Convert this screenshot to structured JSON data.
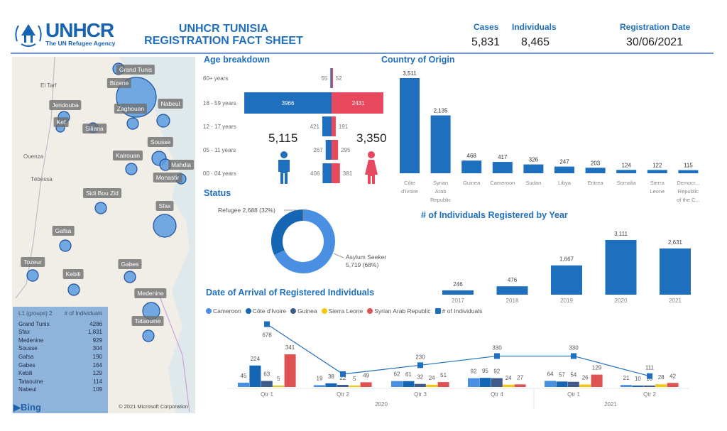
{
  "header": {
    "logo_text": "UNHCR",
    "logo_sub": "The UN Refugee Agency",
    "title_line1": "UNHCR TUNISIA",
    "title_line2": "REGISTRATION FACT SHEET",
    "cases_label": "Cases",
    "cases_value": "5,831",
    "individuals_label": "Individuals",
    "individuals_value": "8,465",
    "date_label": "Registration Date",
    "date_value": "30/06/2021"
  },
  "map": {
    "places": [
      "Grand Tunis",
      "Bizerte",
      "Jendouba",
      "Zaghouan",
      "Nabeul",
      "Kef",
      "Siliana",
      "Sousse",
      "Kairouan",
      "Mahdia",
      "Monastir",
      "Sidi Bou Zid",
      "Sfax",
      "Gafsa",
      "Tozeur",
      "Kebili",
      "Gabes",
      "Medenine",
      "Tataouine"
    ],
    "background_labels": [
      "El Tarf",
      "Ouenza",
      "Tébessa"
    ],
    "table_header": [
      "L1 (groups) 2",
      "# of Individuals"
    ],
    "table_rows": [
      [
        "Grand Tunis",
        "4286"
      ],
      [
        "Sfax",
        "1,831"
      ],
      [
        "Medenine",
        "929"
      ],
      [
        "Sousse",
        "304"
      ],
      [
        "Gafsa",
        "190"
      ],
      [
        "Gabes",
        "164"
      ],
      [
        "Kebili",
        "129"
      ],
      [
        "Tataouine",
        "114"
      ],
      [
        "Nabeul",
        "109"
      ]
    ],
    "bing": "Bing",
    "copyright": "© 2021 Microsoft Corporation"
  },
  "age": {
    "title": "Age breakdown",
    "male_total": "5,115",
    "female_total": "3,350",
    "colors": {
      "male": "#1f6fbf",
      "female": "#e8485e"
    },
    "rows": [
      {
        "label": "60+ years",
        "male": 55,
        "female": 52
      },
      {
        "label": "18 - 59 years",
        "male": 3966,
        "female": 2431
      },
      {
        "label": "12 - 17 years",
        "male": 421,
        "female": 191
      },
      {
        "label": "05 - 11 years",
        "male": 267,
        "female": 295
      },
      {
        "label": "00 - 04 years",
        "male": 406,
        "female": 381
      }
    ]
  },
  "status": {
    "title": "Status",
    "refugee_label": "Refugee 2,688 (32%)",
    "asylum_label1": "Asylum Seeker",
    "asylum_label2": "5,719 (68%)"
  },
  "arrival": {
    "title": "Date of Arrival of Registered Individuals"
  },
  "year": {
    "title": "# of Individuals Registered by Year"
  },
  "origin": {
    "title": "Country of Origin"
  },
  "chart_data": [
    {
      "type": "bar",
      "title": "Country of Origin",
      "categories": [
        "Côte d'Ivoire",
        "Syrian Arab Republic",
        "Guinea",
        "Cameroon",
        "Sudan",
        "Libya",
        "Eritrea",
        "Somalia",
        "Sierra Leone",
        "Democr... Republic of the C..."
      ],
      "values": [
        3511,
        2135,
        468,
        417,
        326,
        247,
        203,
        124,
        122,
        115
      ],
      "labels": [
        "3,511",
        "2,135",
        "468",
        "417",
        "326",
        "247",
        "203",
        "124",
        "122",
        "115"
      ],
      "color": "#1f6fbf"
    },
    {
      "type": "pie",
      "title": "Status",
      "donut": true,
      "slices": [
        {
          "name": "Refugee",
          "value": 2688,
          "pct": 32,
          "color": "#1565b5"
        },
        {
          "name": "Asylum Seeker",
          "value": 5719,
          "pct": 68,
          "color": "#4a90e2"
        }
      ]
    },
    {
      "type": "bar",
      "title": "# of Individuals Registered by Year",
      "categories": [
        "2017",
        "2018",
        "2019",
        "2020",
        "2021"
      ],
      "values": [
        246,
        476,
        1667,
        3111,
        2631
      ],
      "labels": [
        "246",
        "476",
        "1,667",
        "3,111",
        "2,631"
      ],
      "color": "#1f6fbf"
    },
    {
      "type": "bar",
      "title": "Date of Arrival of Registered Individuals",
      "categories": [
        "Qtr 1",
        "Qtr 2",
        "Qtr 3",
        "Qtr 4",
        "Qtr 1",
        "Qtr 2"
      ],
      "groups": [
        {
          "label": "2020",
          "span": 4
        },
        {
          "label": "2021",
          "span": 2
        }
      ],
      "series": [
        {
          "name": "Cameroon",
          "color": "#4a90e2",
          "values": [
            45,
            19,
            62,
            92,
            64,
            21
          ]
        },
        {
          "name": "Côte d'Ivoire",
          "color": "#1565b5",
          "values": [
            224,
            38,
            61,
            95,
            57,
            10
          ]
        },
        {
          "name": "Guinea",
          "color": "#3f5a8c",
          "values": [
            63,
            22,
            32,
            92,
            54,
            10
          ]
        },
        {
          "name": "Sierra Leone",
          "color": "#f2c811",
          "values": [
            5,
            5,
            24,
            24,
            26,
            28
          ]
        },
        {
          "name": "Syrian Arab Republic",
          "color": "#e05252",
          "values": [
            341,
            49,
            51,
            27,
            129,
            42
          ]
        }
      ],
      "line": {
        "name": "# of Individuals",
        "color": "#1f6fbf",
        "values": [
          678,
          133,
          230,
          330,
          330,
          111
        ]
      }
    }
  ]
}
